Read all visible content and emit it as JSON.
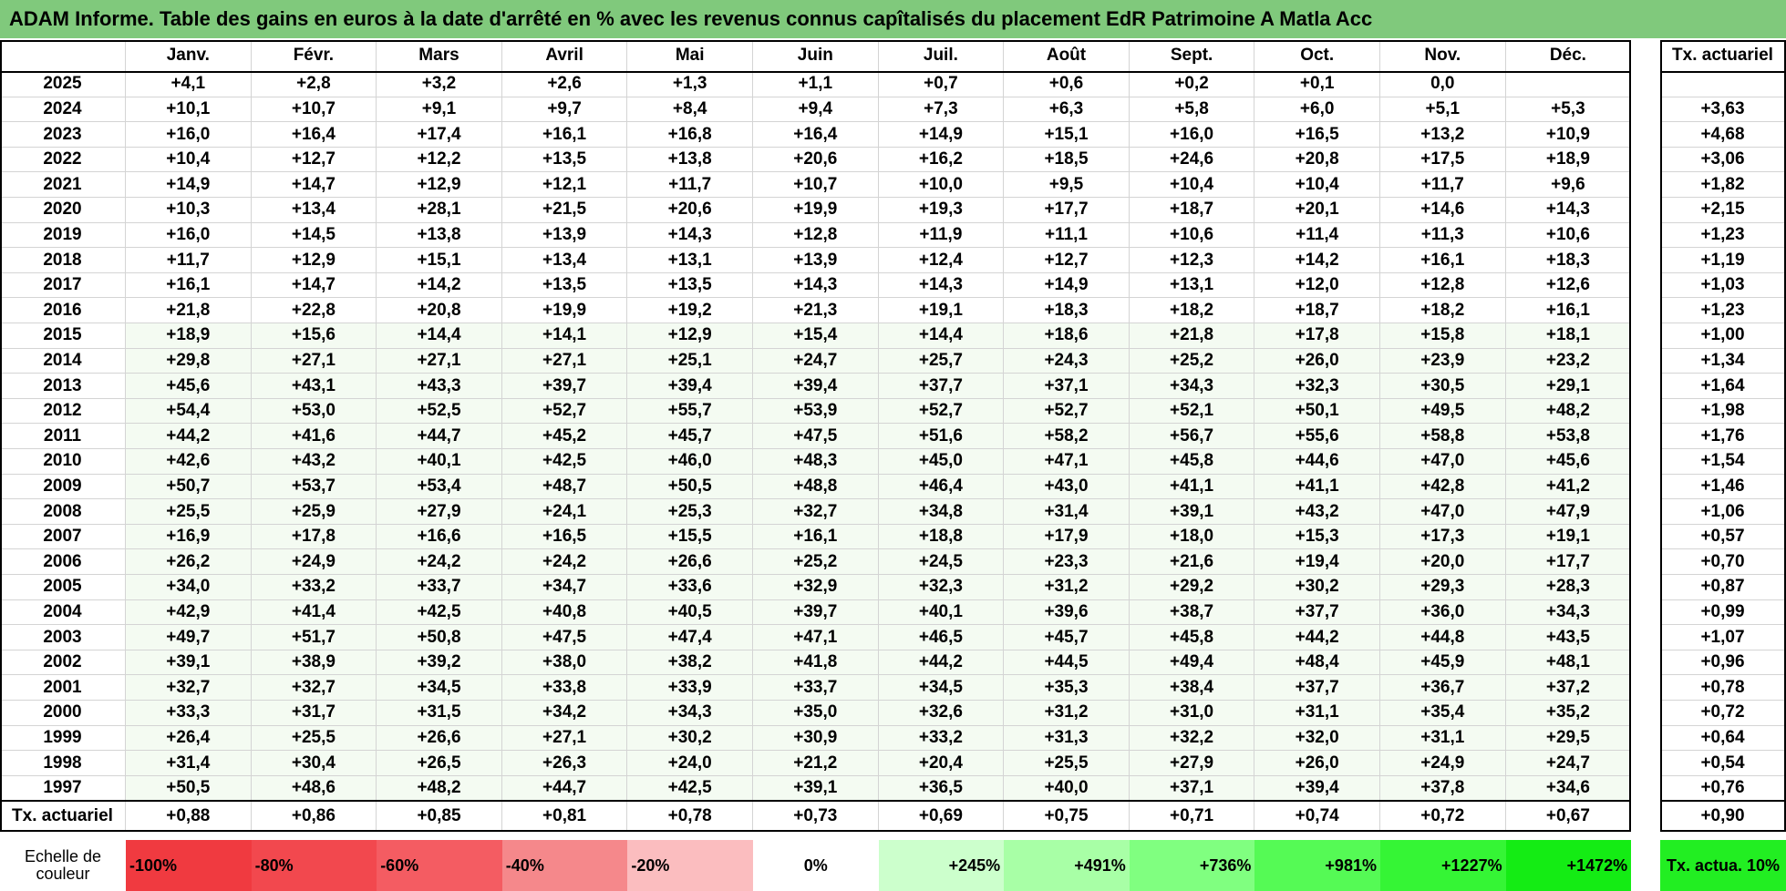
{
  "title": "ADAM Informe. Table des gains en euros à la date d'arrêté en % avec les revenus connus capîtalisés du placement EdR Patrimoine A Matla Acc",
  "columns": {
    "months": [
      "Janv.",
      "Févr.",
      "Mars",
      "Avril",
      "Mai",
      "Juin",
      "Juil.",
      "Août",
      "Sept.",
      "Oct.",
      "Nov.",
      "Déc."
    ],
    "tx": "Tx. actuariel"
  },
  "rows": [
    {
      "year": "2025",
      "values": [
        "+4,1",
        "+2,8",
        "+3,2",
        "+2,6",
        "+1,3",
        "+1,1",
        "+0,7",
        "+0,6",
        "+0,2",
        "+0,1",
        "0,0"
      ]
    },
    {
      "year": "2024",
      "values": [
        "+10,1",
        "+10,7",
        "+9,1",
        "+9,7",
        "+8,4",
        "+9,4",
        "+7,3",
        "+6,3",
        "+5,8",
        "+6,0",
        "+5,1",
        "+5,3"
      ],
      "tx": "+3,63"
    },
    {
      "year": "2023",
      "values": [
        "+16,0",
        "+16,4",
        "+17,4",
        "+16,1",
        "+16,8",
        "+16,4",
        "+14,9",
        "+15,1",
        "+16,0",
        "+16,5",
        "+13,2",
        "+10,9"
      ],
      "tx": "+4,68"
    },
    {
      "year": "2022",
      "values": [
        "+10,4",
        "+12,7",
        "+12,2",
        "+13,5",
        "+13,8",
        "+20,6",
        "+16,2",
        "+18,5",
        "+24,6",
        "+20,8",
        "+17,5",
        "+18,9"
      ],
      "tx": "+3,06"
    },
    {
      "year": "2021",
      "values": [
        "+14,9",
        "+14,7",
        "+12,9",
        "+12,1",
        "+11,7",
        "+10,7",
        "+10,0",
        "+9,5",
        "+10,4",
        "+10,4",
        "+11,7",
        "+9,6"
      ],
      "tx": "+1,82"
    },
    {
      "year": "2020",
      "values": [
        "+10,3",
        "+13,4",
        "+28,1",
        "+21,5",
        "+20,6",
        "+19,9",
        "+19,3",
        "+17,7",
        "+18,7",
        "+20,1",
        "+14,6",
        "+14,3"
      ],
      "tx": "+2,15"
    },
    {
      "year": "2019",
      "values": [
        "+16,0",
        "+14,5",
        "+13,8",
        "+13,9",
        "+14,3",
        "+12,8",
        "+11,9",
        "+11,1",
        "+10,6",
        "+11,4",
        "+11,3",
        "+10,6"
      ],
      "tx": "+1,23"
    },
    {
      "year": "2018",
      "values": [
        "+11,7",
        "+12,9",
        "+15,1",
        "+13,4",
        "+13,1",
        "+13,9",
        "+12,4",
        "+12,7",
        "+12,3",
        "+14,2",
        "+16,1",
        "+18,3"
      ],
      "tx": "+1,19"
    },
    {
      "year": "2017",
      "values": [
        "+16,1",
        "+14,7",
        "+14,2",
        "+13,5",
        "+13,5",
        "+14,3",
        "+14,3",
        "+14,9",
        "+13,1",
        "+12,0",
        "+12,8",
        "+12,6"
      ],
      "tx": "+1,03"
    },
    {
      "year": "2016",
      "values": [
        "+21,8",
        "+22,8",
        "+20,8",
        "+19,9",
        "+19,2",
        "+21,3",
        "+19,1",
        "+18,3",
        "+18,2",
        "+18,7",
        "+18,2",
        "+16,1"
      ],
      "tx": "+1,23"
    },
    {
      "year": "2015",
      "values": [
        "+18,9",
        "+15,6",
        "+14,4",
        "+14,1",
        "+12,9",
        "+15,4",
        "+14,4",
        "+18,6",
        "+21,8",
        "+17,8",
        "+15,8",
        "+18,1"
      ],
      "tx": "+1,00"
    },
    {
      "year": "2014",
      "values": [
        "+29,8",
        "+27,1",
        "+27,1",
        "+27,1",
        "+25,1",
        "+24,7",
        "+25,7",
        "+24,3",
        "+25,2",
        "+26,0",
        "+23,9",
        "+23,2"
      ],
      "tx": "+1,34"
    },
    {
      "year": "2013",
      "values": [
        "+45,6",
        "+43,1",
        "+43,3",
        "+39,7",
        "+39,4",
        "+39,4",
        "+37,7",
        "+37,1",
        "+34,3",
        "+32,3",
        "+30,5",
        "+29,1"
      ],
      "tx": "+1,64"
    },
    {
      "year": "2012",
      "values": [
        "+54,4",
        "+53,0",
        "+52,5",
        "+52,7",
        "+55,7",
        "+53,9",
        "+52,7",
        "+52,7",
        "+52,1",
        "+50,1",
        "+49,5",
        "+48,2"
      ],
      "tx": "+1,98"
    },
    {
      "year": "2011",
      "values": [
        "+44,2",
        "+41,6",
        "+44,7",
        "+45,2",
        "+45,7",
        "+47,5",
        "+51,6",
        "+58,2",
        "+56,7",
        "+55,6",
        "+58,8",
        "+53,8"
      ],
      "tx": "+1,76"
    },
    {
      "year": "2010",
      "values": [
        "+42,6",
        "+43,2",
        "+40,1",
        "+42,5",
        "+46,0",
        "+48,3",
        "+45,0",
        "+47,1",
        "+45,8",
        "+44,6",
        "+47,0",
        "+45,6"
      ],
      "tx": "+1,54"
    },
    {
      "year": "2009",
      "values": [
        "+50,7",
        "+53,7",
        "+53,4",
        "+48,7",
        "+50,5",
        "+48,8",
        "+46,4",
        "+43,0",
        "+41,1",
        "+41,1",
        "+42,8",
        "+41,2"
      ],
      "tx": "+1,46"
    },
    {
      "year": "2008",
      "values": [
        "+25,5",
        "+25,9",
        "+27,9",
        "+24,1",
        "+25,3",
        "+32,7",
        "+34,8",
        "+31,4",
        "+39,1",
        "+43,2",
        "+47,0",
        "+47,9"
      ],
      "tx": "+1,06"
    },
    {
      "year": "2007",
      "values": [
        "+16,9",
        "+17,8",
        "+16,6",
        "+16,5",
        "+15,5",
        "+16,1",
        "+18,8",
        "+17,9",
        "+18,0",
        "+15,3",
        "+17,3",
        "+19,1"
      ],
      "tx": "+0,57"
    },
    {
      "year": "2006",
      "values": [
        "+26,2",
        "+24,9",
        "+24,2",
        "+24,2",
        "+26,6",
        "+25,2",
        "+24,5",
        "+23,3",
        "+21,6",
        "+19,4",
        "+20,0",
        "+17,7"
      ],
      "tx": "+0,70"
    },
    {
      "year": "2005",
      "values": [
        "+34,0",
        "+33,2",
        "+33,7",
        "+34,7",
        "+33,6",
        "+32,9",
        "+32,3",
        "+31,2",
        "+29,2",
        "+30,2",
        "+29,3",
        "+28,3"
      ],
      "tx": "+0,87"
    },
    {
      "year": "2004",
      "values": [
        "+42,9",
        "+41,4",
        "+42,5",
        "+40,8",
        "+40,5",
        "+39,7",
        "+40,1",
        "+39,6",
        "+38,7",
        "+37,7",
        "+36,0",
        "+34,3"
      ],
      "tx": "+0,99"
    },
    {
      "year": "2003",
      "values": [
        "+49,7",
        "+51,7",
        "+50,8",
        "+47,5",
        "+47,4",
        "+47,1",
        "+46,5",
        "+45,7",
        "+45,8",
        "+44,2",
        "+44,8",
        "+43,5"
      ],
      "tx": "+1,07"
    },
    {
      "year": "2002",
      "values": [
        "+39,1",
        "+38,9",
        "+39,2",
        "+38,0",
        "+38,2",
        "+41,8",
        "+44,2",
        "+44,5",
        "+49,4",
        "+48,4",
        "+45,9",
        "+48,1"
      ],
      "tx": "+0,96"
    },
    {
      "year": "2001",
      "values": [
        "+32,7",
        "+32,7",
        "+34,5",
        "+33,8",
        "+33,9",
        "+33,7",
        "+34,5",
        "+35,3",
        "+38,4",
        "+37,7",
        "+36,7",
        "+37,2"
      ],
      "tx": "+0,78"
    },
    {
      "year": "2000",
      "values": [
        "+33,3",
        "+31,7",
        "+31,5",
        "+34,2",
        "+34,3",
        "+35,0",
        "+32,6",
        "+31,2",
        "+31,0",
        "+31,1",
        "+35,4",
        "+35,2"
      ],
      "tx": "+0,72"
    },
    {
      "year": "1999",
      "values": [
        "+26,4",
        "+25,5",
        "+26,6",
        "+27,1",
        "+30,2",
        "+30,9",
        "+33,2",
        "+31,3",
        "+32,2",
        "+32,0",
        "+31,1",
        "+29,5"
      ],
      "tx": "+0,64"
    },
    {
      "year": "1998",
      "values": [
        "+31,4",
        "+30,4",
        "+26,5",
        "+26,3",
        "+24,0",
        "+21,2",
        "+20,4",
        "+25,5",
        "+27,9",
        "+26,0",
        "+24,9",
        "+24,7"
      ],
      "tx": "+0,54"
    },
    {
      "year": "1997",
      "values": [
        "+50,5",
        "+48,6",
        "+48,2",
        "+44,7",
        "+42,5",
        "+39,1",
        "+36,5",
        "+40,0",
        "+37,1",
        "+39,4",
        "+37,8",
        "+34,6"
      ],
      "tx": "+0,76"
    }
  ],
  "footer": {
    "label": "Tx. actuariel",
    "values": [
      "+0,88",
      "+0,86",
      "+0,85",
      "+0,81",
      "+0,78",
      "+0,73",
      "+0,69",
      "+0,75",
      "+0,71",
      "+0,74",
      "+0,72",
      "+0,67"
    ],
    "tx": "+0,90"
  },
  "scale": {
    "label": "Echelle de couleur",
    "steps": [
      "-100%",
      "-80%",
      "-60%",
      "-40%",
      "-20%",
      "0%",
      "+245%",
      "+491%",
      "+736%",
      "+981%",
      "+1227%",
      "+1472%"
    ],
    "tx": "Tx. actua. 10%"
  }
}
